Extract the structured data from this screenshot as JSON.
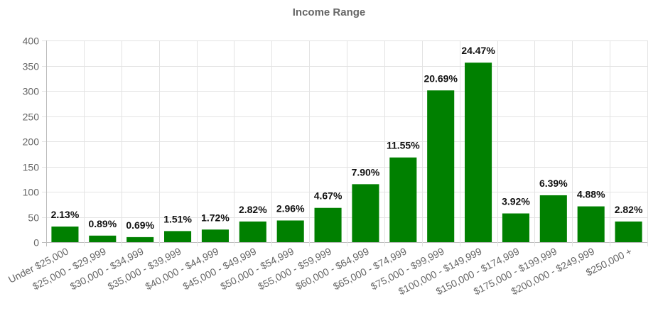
{
  "chart_data": {
    "type": "bar",
    "title": "Income Range",
    "xlabel": "",
    "ylabel": "",
    "ylim": [
      0,
      400
    ],
    "y_ticks": [
      0,
      50,
      100,
      150,
      200,
      250,
      300,
      350,
      400
    ],
    "grid": true,
    "legend": "none",
    "bar_color": "#008000",
    "categories": [
      "Under $25,000",
      "$25,000 - $29,999",
      "$30,000 - $34,999",
      "$35,000 - $39,999",
      "$40,000 - $44,999",
      "$45,000 - $49,999",
      "$50,000 - $54,999",
      "$55,000 - $59,999",
      "$60,000 - $64,999",
      "$65,000 - $74,999",
      "$75,000 - $99,999",
      "$100,000 - $149,999",
      "$150,000 - $174,999",
      "$175,000 - $199,999",
      "$200,000 - $249,999",
      "$250,000 +"
    ],
    "values": [
      31,
      13,
      10,
      22,
      25,
      41,
      43,
      68,
      115,
      168,
      301,
      356,
      57,
      93,
      71,
      41
    ],
    "data_labels": [
      "2.13%",
      "0.89%",
      "0.69%",
      "1.51%",
      "1.72%",
      "2.82%",
      "2.96%",
      "4.67%",
      "7.90%",
      "11.55%",
      "20.69%",
      "24.47%",
      "3.92%",
      "6.39%",
      "4.88%",
      "2.82%"
    ]
  }
}
